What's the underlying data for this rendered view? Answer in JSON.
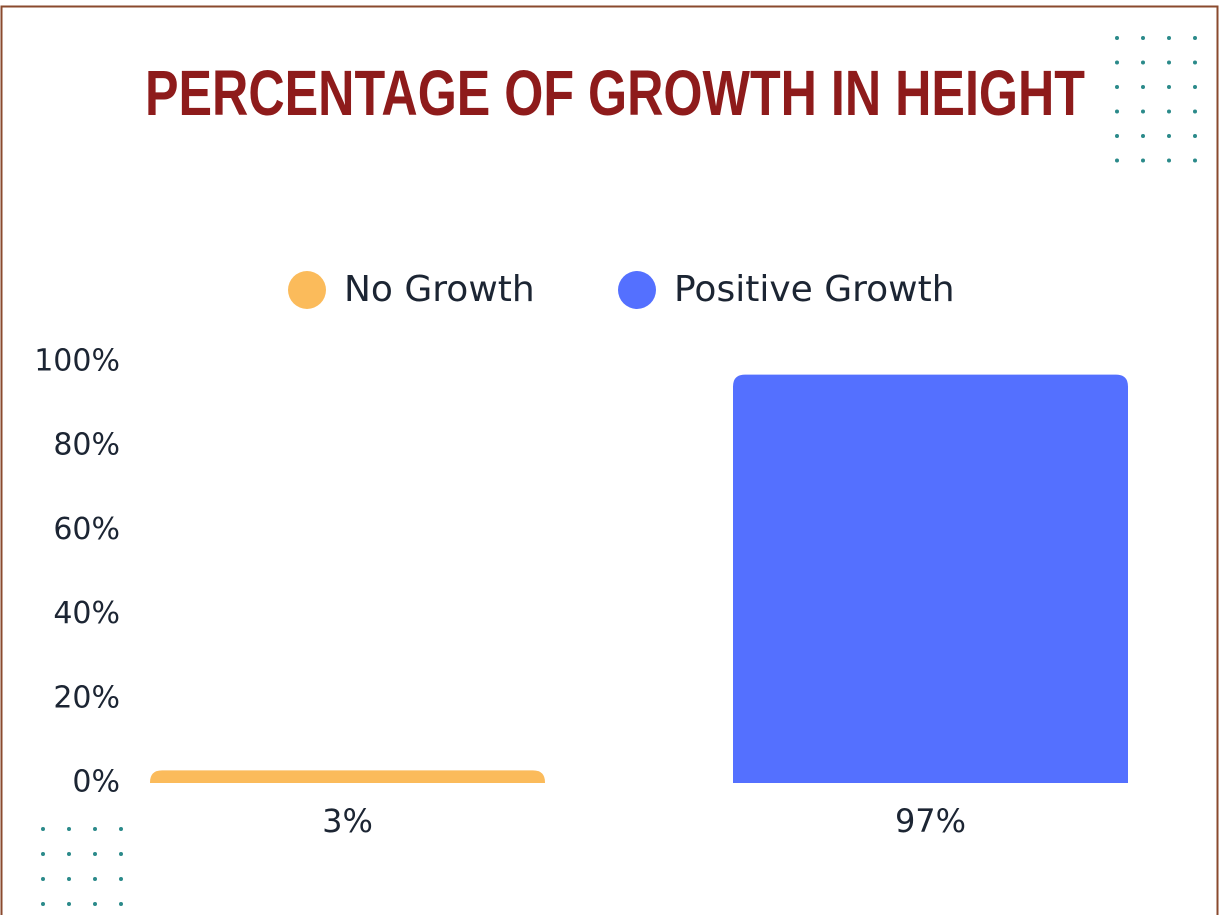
{
  "chart_data": {
    "type": "bar",
    "title": "PERCENTAGE OF GROWTH IN HEIGHT",
    "categories": [
      null
    ],
    "series": [
      {
        "name": "No Growth",
        "color": "#fbbb5b",
        "values": [
          3
        ],
        "value_labels": [
          "3%"
        ]
      },
      {
        "name": "Positive Growth",
        "color": "#5470ff",
        "values": [
          97
        ],
        "value_labels": [
          "97%"
        ]
      }
    ],
    "ylim": [
      0,
      100
    ],
    "yticks": [
      {
        "value": 0,
        "label": "0%"
      },
      {
        "value": 20,
        "label": "20%"
      },
      {
        "value": 40,
        "label": "40%"
      },
      {
        "value": 60,
        "label": "60%"
      },
      {
        "value": 80,
        "label": "80%"
      },
      {
        "value": 100,
        "label": "100%"
      }
    ],
    "legend": "top",
    "grid": false
  }
}
